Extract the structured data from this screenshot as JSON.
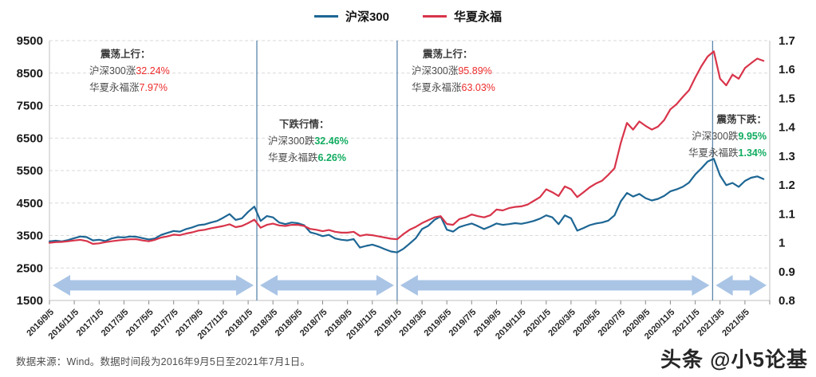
{
  "legend": {
    "items": [
      {
        "label": "沪深300",
        "color": "#1d6694"
      },
      {
        "label": "华夏永福",
        "color": "#d8344a"
      }
    ]
  },
  "colors": {
    "csi300_line": "#1d6694",
    "fund_line": "#d8344a",
    "up_pct_text": "#ed2c2c",
    "down_pct_text": "#10ac60",
    "phase_arrow": "#a9c4e5",
    "phase_divider": "#5b87ad",
    "gridline": "#d9d9d9",
    "plot_border": "#bfbfbf",
    "axis_text": "#1a1a1a"
  },
  "annotations": [
    {
      "title": "震荡上行：",
      "line1_text": "沪深300涨",
      "line1_pct": "32.24%",
      "line2_text": "华夏永福涨",
      "line2_pct": "7.97%",
      "direction": "up"
    },
    {
      "title": "下跌行情：",
      "line1_text": "沪深300跌",
      "line1_pct": "32.46%",
      "line2_text": "华夏永福跌",
      "line2_pct": "6.26%",
      "direction": "down"
    },
    {
      "title": "震荡上行：",
      "line1_text": "沪深300涨",
      "line1_pct": "95.89%",
      "line2_text": "华夏永福涨",
      "line2_pct": "63.03%",
      "direction": "up"
    },
    {
      "title": "震荡下跌：",
      "line1_text": "沪深300跌",
      "line1_pct": "9.95%",
      "line2_text": "华夏永福跌",
      "line2_pct": "1.34%",
      "direction": "down"
    }
  ],
  "footer": {
    "source": "数据来源：Wind。数据时间段为2016年9月5日至2021年7月1日。"
  },
  "watermark": {
    "text": "头条 @小5论基"
  },
  "chart_data": {
    "type": "line",
    "title": "",
    "grid": true,
    "legend_position": "top",
    "x_axis": {
      "start_date": "2016/9/5",
      "end_date": "2021/7/1",
      "total_months": 58,
      "tick_interval_months": 2,
      "tick_labels": [
        "2016/9/5",
        "2016/11/5",
        "2017/1/5",
        "2017/3/5",
        "2017/5/5",
        "2017/7/5",
        "2017/9/5",
        "2017/11/5",
        "2018/1/5",
        "2018/3/5",
        "2018/5/5",
        "2018/7/5",
        "2018/9/5",
        "2018/11/5",
        "2019/1/5",
        "2019/3/5",
        "2019/5/5",
        "2019/7/5",
        "2019/9/5",
        "2019/11/5",
        "2020/1/5",
        "2020/3/5",
        "2020/5/5",
        "2020/7/5",
        "2020/9/5",
        "2020/11/5",
        "2021/1/5",
        "2021/3/5",
        "2021/5/5"
      ]
    },
    "left_axis": {
      "series": "沪深300",
      "min": 1500,
      "max": 9500,
      "ticks": [
        "9500",
        "8500",
        "7500",
        "6500",
        "5500",
        "4500",
        "3500",
        "2500",
        "1500"
      ]
    },
    "right_axis": {
      "series": "华夏永福",
      "min": 0.8,
      "max": 1.7,
      "ticks": [
        "1.7",
        "1.6",
        "1.5",
        "1.4",
        "1.3",
        "1.2",
        "1.1",
        "1",
        "0.9",
        "0.8"
      ]
    },
    "dividers_months": [
      16.7,
      28,
      53.4
    ],
    "phases": [
      {
        "label": "震荡上行",
        "from_month": 0,
        "to_month": 16.7,
        "csi300_change": "+32.24%",
        "fund_change": "+7.97%"
      },
      {
        "label": "下跌行情",
        "from_month": 16.7,
        "to_month": 28,
        "csi300_change": "-32.46%",
        "fund_change": "-6.26%"
      },
      {
        "label": "震荡上行",
        "from_month": 28,
        "to_month": 53.4,
        "csi300_change": "+95.89%",
        "fund_change": "+63.03%"
      },
      {
        "label": "震荡下跌",
        "from_month": 53.4,
        "to_month": 58,
        "csi300_change": "-9.95%",
        "fund_change": "-1.34%"
      }
    ],
    "series": [
      {
        "name": "沪深300",
        "axis": "left",
        "color": "#1d6694",
        "x_step_months": 0.5,
        "values": [
          3320,
          3340,
          3320,
          3360,
          3420,
          3470,
          3450,
          3350,
          3370,
          3330,
          3410,
          3450,
          3440,
          3470,
          3460,
          3420,
          3380,
          3410,
          3520,
          3580,
          3640,
          3620,
          3700,
          3750,
          3820,
          3840,
          3900,
          3950,
          4050,
          4160,
          3980,
          4030,
          4230,
          4390,
          3950,
          4100,
          4060,
          3900,
          3850,
          3900,
          3880,
          3820,
          3600,
          3550,
          3480,
          3520,
          3410,
          3370,
          3350,
          3390,
          3130,
          3180,
          3220,
          3160,
          3080,
          3010,
          2980,
          3090,
          3250,
          3420,
          3700,
          3800,
          3980,
          4090,
          3680,
          3620,
          3760,
          3820,
          3870,
          3790,
          3700,
          3780,
          3870,
          3830,
          3850,
          3880,
          3860,
          3900,
          3950,
          4020,
          4120,
          4060,
          3850,
          4120,
          4030,
          3650,
          3730,
          3820,
          3870,
          3900,
          3960,
          4120,
          4550,
          4810,
          4700,
          4780,
          4650,
          4580,
          4630,
          4720,
          4860,
          4920,
          5000,
          5130,
          5380,
          5570,
          5780,
          5860,
          5350,
          5050,
          5120,
          5000,
          5180,
          5280,
          5320,
          5240
        ]
      },
      {
        "name": "华夏永福",
        "axis": "right",
        "color": "#d8344a",
        "x_step_months": 0.5,
        "values": [
          1.0,
          1.002,
          1.003,
          1.005,
          1.008,
          1.01,
          1.006,
          0.996,
          0.998,
          1.002,
          1.005,
          1.008,
          1.01,
          1.012,
          1.012,
          1.008,
          1.005,
          1.01,
          1.018,
          1.022,
          1.028,
          1.026,
          1.032,
          1.036,
          1.042,
          1.045,
          1.05,
          1.054,
          1.058,
          1.064,
          1.054,
          1.058,
          1.068,
          1.08,
          1.052,
          1.062,
          1.066,
          1.06,
          1.058,
          1.062,
          1.062,
          1.058,
          1.048,
          1.045,
          1.04,
          1.044,
          1.038,
          1.035,
          1.035,
          1.038,
          1.024,
          1.028,
          1.026,
          1.022,
          1.018,
          1.014,
          1.012,
          1.03,
          1.045,
          1.055,
          1.068,
          1.078,
          1.088,
          1.092,
          1.065,
          1.062,
          1.082,
          1.088,
          1.098,
          1.092,
          1.088,
          1.095,
          1.115,
          1.112,
          1.12,
          1.124,
          1.126,
          1.132,
          1.145,
          1.158,
          1.185,
          1.175,
          1.162,
          1.195,
          1.185,
          1.158,
          1.175,
          1.192,
          1.205,
          1.215,
          1.235,
          1.258,
          1.345,
          1.415,
          1.392,
          1.42,
          1.405,
          1.392,
          1.402,
          1.425,
          1.462,
          1.48,
          1.505,
          1.528,
          1.572,
          1.612,
          1.645,
          1.663,
          1.568,
          1.545,
          1.582,
          1.568,
          1.605,
          1.622,
          1.638,
          1.63
        ]
      }
    ]
  }
}
